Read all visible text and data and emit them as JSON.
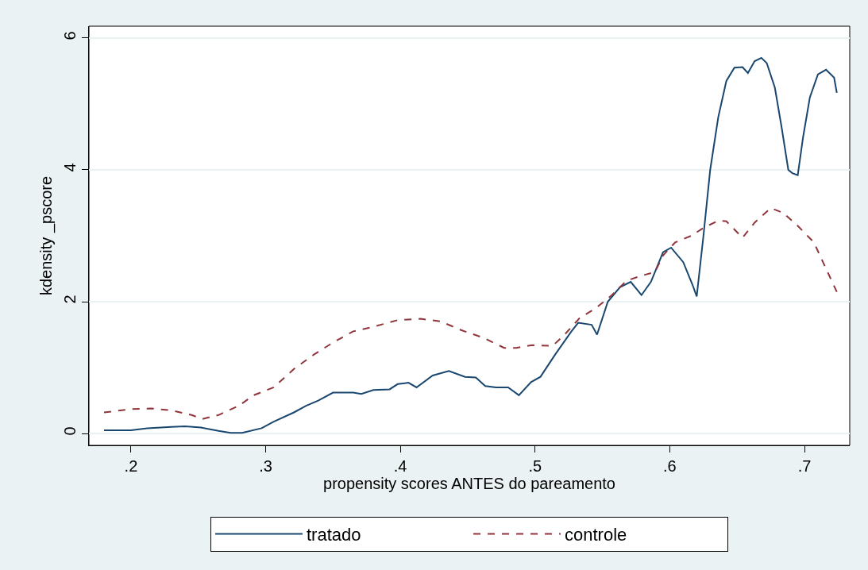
{
  "chart_data": {
    "type": "line",
    "xlabel": "propensity scores ANTES do pareamento",
    "ylabel": "kdensity _pscore",
    "xlim": [
      0.1688,
      0.7336
    ],
    "xticks": [
      {
        "value": 0.2,
        "label": ".2"
      },
      {
        "value": 0.3,
        "label": ".3"
      },
      {
        "value": 0.4,
        "label": ".4"
      },
      {
        "value": 0.5,
        "label": ".5"
      },
      {
        "value": 0.6,
        "label": ".6"
      },
      {
        "value": 0.7,
        "label": ".7"
      }
    ],
    "ylim": [
      -0.18,
      6.18
    ],
    "yticks": [
      0,
      2,
      4,
      6
    ],
    "grid": "y",
    "legend": "bottom",
    "series": [
      {
        "name": "tratado",
        "color": "#1a476f",
        "line_style": "solid",
        "x": [
          0.18,
          0.2,
          0.212,
          0.23,
          0.24,
          0.252,
          0.265,
          0.274,
          0.2825,
          0.297,
          0.306,
          0.321,
          0.33,
          0.339,
          0.35,
          0.365,
          0.371,
          0.38,
          0.392,
          0.398,
          0.406,
          0.412,
          0.424,
          0.436,
          0.448,
          0.456,
          0.463,
          0.471,
          0.48,
          0.488,
          0.497,
          0.504,
          0.515,
          0.527,
          0.532,
          0.542,
          0.546,
          0.554,
          0.563,
          0.571,
          0.579,
          0.586,
          0.595,
          0.601,
          0.61,
          0.617,
          0.62,
          0.625,
          0.63,
          0.636,
          0.642,
          0.648,
          0.654,
          0.658,
          0.663,
          0.668,
          0.672,
          0.678,
          0.683,
          0.688,
          0.691,
          0.695,
          0.699,
          0.704,
          0.71,
          0.716,
          0.722,
          0.724
        ],
        "values": [
          0.05,
          0.05,
          0.08,
          0.1,
          0.11,
          0.09,
          0.04,
          0.01,
          0.01,
          0.08,
          0.18,
          0.32,
          0.42,
          0.5,
          0.62,
          0.62,
          0.6,
          0.66,
          0.67,
          0.75,
          0.77,
          0.7,
          0.88,
          0.95,
          0.86,
          0.85,
          0.72,
          0.7,
          0.7,
          0.58,
          0.78,
          0.86,
          1.2,
          1.55,
          1.68,
          1.65,
          1.5,
          2.0,
          2.22,
          2.3,
          2.1,
          2.3,
          2.75,
          2.82,
          2.6,
          2.25,
          2.08,
          3.0,
          4.0,
          4.8,
          5.35,
          5.55,
          5.56,
          5.47,
          5.65,
          5.7,
          5.62,
          5.25,
          4.65,
          4.0,
          3.95,
          3.92,
          4.5,
          5.1,
          5.45,
          5.52,
          5.4,
          5.17
        ]
      },
      {
        "name": "controle",
        "color": "#90353b",
        "line_style": "dashed",
        "x": [
          0.18,
          0.2,
          0.215,
          0.23,
          0.245,
          0.253,
          0.265,
          0.28,
          0.291,
          0.306,
          0.321,
          0.336,
          0.35,
          0.365,
          0.38,
          0.398,
          0.415,
          0.43,
          0.445,
          0.462,
          0.477,
          0.486,
          0.498,
          0.513,
          0.521,
          0.533,
          0.545,
          0.557,
          0.568,
          0.58,
          0.589,
          0.595,
          0.604,
          0.616,
          0.625,
          0.636,
          0.642,
          0.654,
          0.663,
          0.675,
          0.684,
          0.695,
          0.707,
          0.716,
          0.724
        ],
        "values": [
          0.32,
          0.37,
          0.38,
          0.35,
          0.28,
          0.22,
          0.28,
          0.42,
          0.58,
          0.7,
          0.98,
          1.2,
          1.38,
          1.55,
          1.62,
          1.72,
          1.74,
          1.7,
          1.57,
          1.45,
          1.3,
          1.3,
          1.34,
          1.33,
          1.48,
          1.75,
          1.9,
          2.1,
          2.32,
          2.4,
          2.45,
          2.7,
          2.9,
          3.0,
          3.12,
          3.23,
          3.22,
          2.97,
          3.2,
          3.42,
          3.35,
          3.15,
          2.9,
          2.5,
          2.15
        ]
      }
    ]
  }
}
